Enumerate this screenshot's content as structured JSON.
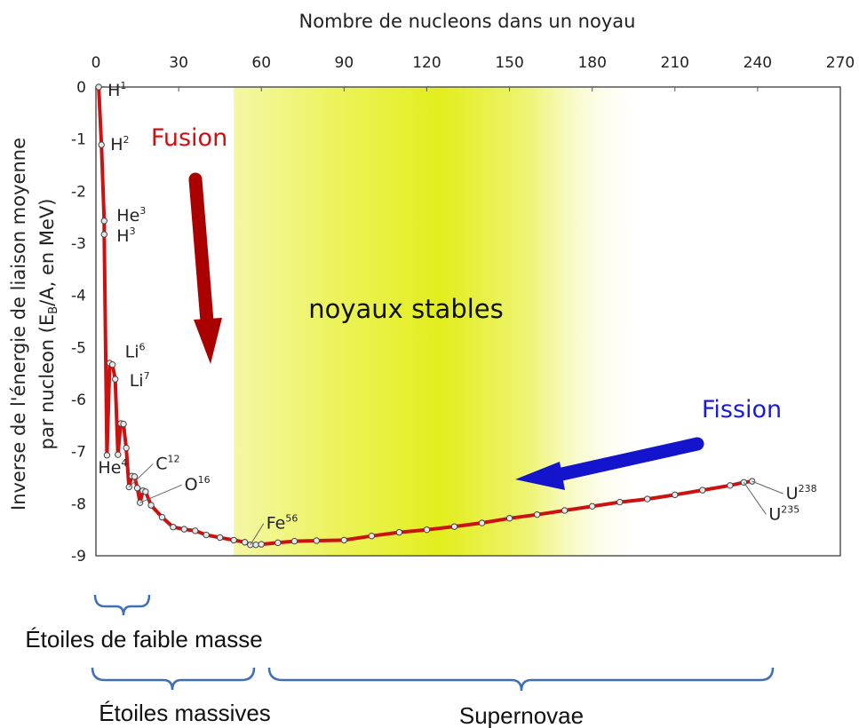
{
  "chart_data": {
    "type": "line",
    "title": "Nombre de nucleons dans un noyau",
    "xlabel": "Nombre de nucleons dans un noyau",
    "ylabel_line1": "Inverse de l'énergie de liaison moyenne",
    "ylabel_line2": "par nucleon (E",
    "ylabel_sub": "B",
    "ylabel_line2_end": "/A, en MeV)",
    "x_axis_position": "top",
    "xlim": [
      0,
      270
    ],
    "ylim": [
      -9,
      0
    ],
    "x_ticks": [
      "0",
      "30",
      "60",
      "90",
      "120",
      "150",
      "180",
      "210",
      "240",
      "270"
    ],
    "y_ticks": [
      "0",
      "-1",
      "-2",
      "-3",
      "-4",
      "-5",
      "-6",
      "-7",
      "-8",
      "-9"
    ],
    "grid": false,
    "stable_zone": {
      "label": "noyaux stables",
      "x_range": [
        50,
        200
      ],
      "peak_x": 125
    },
    "series": [
      {
        "color": "#cc1111",
        "x": [
          1,
          2,
          3,
          3,
          4,
          5,
          6,
          7,
          8,
          9,
          10,
          11,
          12,
          13,
          14,
          15,
          16,
          17,
          18,
          20,
          24,
          28,
          32,
          36,
          40,
          45,
          50,
          54,
          56,
          58,
          60,
          66,
          72,
          80,
          90,
          100,
          110,
          120,
          130,
          140,
          150,
          160,
          170,
          180,
          190,
          200,
          210,
          220,
          230,
          235,
          238
        ],
        "y": [
          0,
          -1.11,
          -2.57,
          -2.83,
          -7.07,
          -5.3,
          -5.33,
          -5.61,
          -7.06,
          -6.46,
          -6.47,
          -6.93,
          -7.68,
          -7.47,
          -7.48,
          -7.7,
          -7.98,
          -7.75,
          -7.77,
          -8.03,
          -8.26,
          -8.45,
          -8.49,
          -8.52,
          -8.6,
          -8.65,
          -8.7,
          -8.74,
          -8.79,
          -8.79,
          -8.78,
          -8.75,
          -8.72,
          -8.71,
          -8.7,
          -8.62,
          -8.55,
          -8.5,
          -8.44,
          -8.37,
          -8.28,
          -8.21,
          -8.13,
          -8.05,
          -7.97,
          -7.91,
          -7.83,
          -7.74,
          -7.65,
          -7.59,
          -7.57
        ]
      }
    ],
    "annotations": [
      {
        "label": "H",
        "sup": "1",
        "x": 1,
        "y": 0
      },
      {
        "label": "H",
        "sup": "2",
        "x": 2,
        "y": -1.11
      },
      {
        "label": "He",
        "sup": "3",
        "x": 3,
        "y": -2.57
      },
      {
        "label": "H",
        "sup": "3",
        "x": 3,
        "y": -2.83
      },
      {
        "label": "Li",
        "sup": "6",
        "x": 6,
        "y": -5.33
      },
      {
        "label": "Li",
        "sup": "7",
        "x": 7,
        "y": -5.61
      },
      {
        "label": "He",
        "sup": "4",
        "x": 4,
        "y": -7.07
      },
      {
        "label": "C",
        "sup": "12",
        "x": 12,
        "y": -7.68
      },
      {
        "label": "O",
        "sup": "16",
        "x": 16,
        "y": -7.98
      },
      {
        "label": "Fe",
        "sup": "56",
        "x": 56,
        "y": -8.79
      },
      {
        "label": "U",
        "sup": "238",
        "x": 238,
        "y": -7.57
      },
      {
        "label": "U",
        "sup": "235",
        "x": 235,
        "y": -7.59
      }
    ],
    "process_labels": {
      "fusion": "Fusion",
      "fission": "Fission"
    },
    "process_colors": {
      "fusion": "#aa0000",
      "fission": "#1414cc"
    }
  },
  "brackets": [
    {
      "label": "Étoiles de faible masse"
    },
    {
      "label": "Étoiles massives"
    },
    {
      "label": "Supernovae"
    }
  ]
}
